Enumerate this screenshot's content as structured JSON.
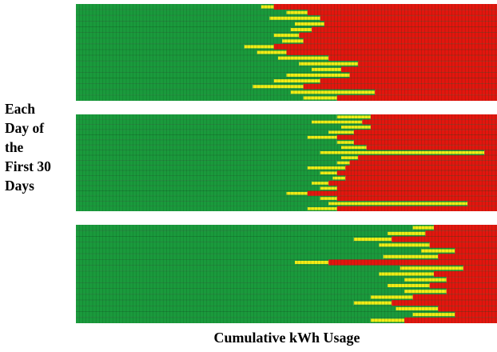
{
  "chart_data": {
    "type": "heatmap",
    "title": "",
    "ylabel_lines": [
      "Each",
      "Day of",
      "the",
      "First 30",
      "Days"
    ],
    "xlabel": "Cumulative kWh Usage",
    "grid": true,
    "legend": "none",
    "colors": {
      "low": "#1a9a3c",
      "transition": "#f2ec16",
      "high": "#e3150e"
    },
    "panels": [
      {
        "name": "panel-1",
        "rows": [
          {
            "yellow_start": 0.44,
            "red_start": 0.47
          },
          {
            "yellow_start": 0.5,
            "red_start": 0.55
          },
          {
            "yellow_start": 0.46,
            "red_start": 0.58
          },
          {
            "yellow_start": 0.52,
            "red_start": 0.59
          },
          {
            "yellow_start": 0.51,
            "red_start": 0.56
          },
          {
            "yellow_start": 0.47,
            "red_start": 0.53
          },
          {
            "yellow_start": 0.49,
            "red_start": 0.54
          },
          {
            "yellow_start": 0.4,
            "red_start": 0.47
          },
          {
            "yellow_start": 0.43,
            "red_start": 0.5
          },
          {
            "yellow_start": 0.48,
            "red_start": 0.6
          },
          {
            "yellow_start": 0.53,
            "red_start": 0.67
          },
          {
            "yellow_start": 0.56,
            "red_start": 0.63
          },
          {
            "yellow_start": 0.5,
            "red_start": 0.65
          },
          {
            "yellow_start": 0.47,
            "red_start": 0.58
          },
          {
            "yellow_start": 0.42,
            "red_start": 0.54
          },
          {
            "yellow_start": 0.51,
            "red_start": 0.71
          },
          {
            "yellow_start": 0.54,
            "red_start": 0.62
          }
        ]
      },
      {
        "name": "panel-2",
        "rows": [
          {
            "yellow_start": 0.62,
            "red_start": 0.7
          },
          {
            "yellow_start": 0.56,
            "red_start": 0.68
          },
          {
            "yellow_start": 0.63,
            "red_start": 0.7
          },
          {
            "yellow_start": 0.6,
            "red_start": 0.66
          },
          {
            "yellow_start": 0.55,
            "red_start": 0.62
          },
          {
            "yellow_start": 0.62,
            "red_start": 0.66
          },
          {
            "yellow_start": 0.63,
            "red_start": 0.69
          },
          {
            "yellow_start": 0.58,
            "red_start": 0.97
          },
          {
            "yellow_start": 0.63,
            "red_start": 0.67
          },
          {
            "yellow_start": 0.62,
            "red_start": 0.65
          },
          {
            "yellow_start": 0.55,
            "red_start": 0.64
          },
          {
            "yellow_start": 0.58,
            "red_start": 0.62
          },
          {
            "yellow_start": 0.61,
            "red_start": 0.64
          },
          {
            "yellow_start": 0.56,
            "red_start": 0.6
          },
          {
            "yellow_start": 0.58,
            "red_start": 0.62
          },
          {
            "yellow_start": 0.5,
            "red_start": 0.55
          },
          {
            "yellow_start": 0.58,
            "red_start": 0.62
          },
          {
            "yellow_start": 0.6,
            "red_start": 0.93
          },
          {
            "yellow_start": 0.55,
            "red_start": 0.62
          }
        ]
      },
      {
        "name": "panel-3",
        "rows": [
          {
            "yellow_start": 0.8,
            "red_start": 0.85
          },
          {
            "yellow_start": 0.74,
            "red_start": 0.83
          },
          {
            "yellow_start": 0.66,
            "red_start": 0.75
          },
          {
            "yellow_start": 0.72,
            "red_start": 0.84
          },
          {
            "yellow_start": 0.82,
            "red_start": 0.9
          },
          {
            "yellow_start": 0.73,
            "red_start": 0.86
          },
          {
            "yellow_start": 0.52,
            "red_start": 0.6
          },
          {
            "yellow_start": 0.77,
            "red_start": 0.92
          },
          {
            "yellow_start": 0.72,
            "red_start": 0.85
          },
          {
            "yellow_start": 0.78,
            "red_start": 0.88
          },
          {
            "yellow_start": 0.74,
            "red_start": 0.84
          },
          {
            "yellow_start": 0.78,
            "red_start": 0.88
          },
          {
            "yellow_start": 0.7,
            "red_start": 0.8
          },
          {
            "yellow_start": 0.66,
            "red_start": 0.75
          },
          {
            "yellow_start": 0.76,
            "red_start": 0.86
          },
          {
            "yellow_start": 0.8,
            "red_start": 0.9
          },
          {
            "yellow_start": 0.7,
            "red_start": 0.78
          }
        ]
      }
    ]
  }
}
